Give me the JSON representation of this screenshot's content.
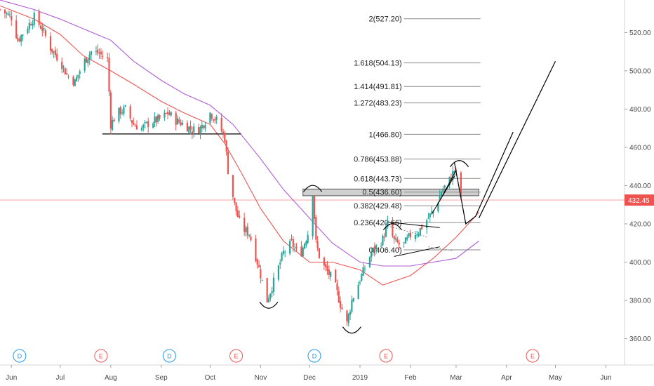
{
  "chart_data": {
    "type": "candlestick",
    "y_axis": {
      "position": "right",
      "range": [
        347,
        537
      ],
      "ticks": [
        "360.00",
        "380.00",
        "400.00",
        "420.00",
        "440.00",
        "460.00",
        "480.00",
        "500.00",
        "520.00"
      ]
    },
    "x_axis": {
      "range": [
        "2018-05-25",
        "2019-06-12"
      ],
      "ticks": [
        {
          "label": "Jun",
          "date": "2018-06-01"
        },
        {
          "label": "Jul",
          "date": "2018-07-01"
        },
        {
          "label": "Aug",
          "date": "2018-08-01"
        },
        {
          "label": "Sep",
          "date": "2018-09-01"
        },
        {
          "label": "Oct",
          "date": "2018-10-01"
        },
        {
          "label": "Nov",
          "date": "2018-11-01"
        },
        {
          "label": "Dec",
          "date": "2018-12-01"
        },
        {
          "label": "2019",
          "date": "2019-01-01"
        },
        {
          "label": "Feb",
          "date": "2019-02-01"
        },
        {
          "label": "Mar",
          "date": "2019-03-01"
        },
        {
          "label": "Apr",
          "date": "2019-04-01"
        },
        {
          "label": "May",
          "date": "2019-05-01"
        },
        {
          "label": "Jun",
          "date": "2019-06-01"
        }
      ]
    },
    "current_price": {
      "value": 432.45,
      "label": "432.45",
      "color": "#ef5350"
    },
    "price_path": [
      [
        "2018-05-25",
        532
      ],
      [
        "2018-06-01",
        528
      ],
      [
        "2018-06-05",
        516
      ],
      [
        "2018-06-10",
        522
      ],
      [
        "2018-06-15",
        528
      ],
      [
        "2018-06-20",
        522
      ],
      [
        "2018-06-25",
        512
      ],
      [
        "2018-07-01",
        505
      ],
      [
        "2018-07-05",
        498
      ],
      [
        "2018-07-10",
        494
      ],
      [
        "2018-07-15",
        504
      ],
      [
        "2018-07-20",
        510
      ],
      [
        "2018-07-25",
        509
      ],
      [
        "2018-07-30",
        506
      ],
      [
        "2018-08-01",
        472
      ],
      [
        "2018-08-05",
        478
      ],
      [
        "2018-08-10",
        480
      ],
      [
        "2018-08-15",
        472
      ],
      [
        "2018-08-20",
        470
      ],
      [
        "2018-08-25",
        473
      ],
      [
        "2018-09-01",
        475
      ],
      [
        "2018-09-05",
        478
      ],
      [
        "2018-09-10",
        474
      ],
      [
        "2018-09-15",
        472
      ],
      [
        "2018-09-20",
        469
      ],
      [
        "2018-09-25",
        470
      ],
      [
        "2018-10-01",
        478
      ],
      [
        "2018-10-05",
        474
      ],
      [
        "2018-10-10",
        465
      ],
      [
        "2018-10-12",
        448
      ],
      [
        "2018-10-16",
        430
      ],
      [
        "2018-10-20",
        418
      ],
      [
        "2018-10-25",
        415
      ],
      [
        "2018-10-30",
        400
      ],
      [
        "2018-11-05",
        380
      ],
      [
        "2018-11-10",
        392
      ],
      [
        "2018-11-15",
        405
      ],
      [
        "2018-11-20",
        410
      ],
      [
        "2018-11-25",
        403
      ],
      [
        "2018-11-30",
        415
      ],
      [
        "2018-12-03",
        437
      ],
      [
        "2018-12-05",
        410
      ],
      [
        "2018-12-08",
        400
      ],
      [
        "2018-12-12",
        395
      ],
      [
        "2018-12-16",
        390
      ],
      [
        "2018-12-20",
        378
      ],
      [
        "2018-12-24",
        368
      ],
      [
        "2018-12-27",
        380
      ],
      [
        "2019-01-02",
        393
      ],
      [
        "2019-01-08",
        405
      ],
      [
        "2019-01-15",
        412
      ],
      [
        "2019-01-18",
        420
      ],
      [
        "2019-01-22",
        411
      ],
      [
        "2019-01-27",
        408
      ],
      [
        "2019-02-01",
        414
      ],
      [
        "2019-02-06",
        416
      ],
      [
        "2019-02-11",
        422
      ],
      [
        "2019-02-16",
        428
      ],
      [
        "2019-02-20",
        437
      ],
      [
        "2019-02-25",
        443
      ],
      [
        "2019-02-28",
        448
      ],
      [
        "2019-03-02",
        443
      ],
      [
        "2019-03-04",
        434
      ]
    ],
    "moving_averages": [
      {
        "color": "#ef5350",
        "points": [
          [
            "2018-05-25",
            534
          ],
          [
            "2018-06-15",
            527
          ],
          [
            "2018-07-01",
            519
          ],
          [
            "2018-07-15",
            508
          ],
          [
            "2018-08-01",
            500
          ],
          [
            "2018-08-15",
            493
          ],
          [
            "2018-09-01",
            484
          ],
          [
            "2018-09-15",
            478
          ],
          [
            "2018-10-01",
            472
          ],
          [
            "2018-10-10",
            462
          ],
          [
            "2018-10-20",
            447
          ],
          [
            "2018-11-01",
            428
          ],
          [
            "2018-11-15",
            411
          ],
          [
            "2018-12-01",
            400
          ],
          [
            "2018-12-15",
            400
          ],
          [
            "2019-01-01",
            396
          ],
          [
            "2019-01-15",
            388
          ],
          [
            "2019-02-01",
            393
          ],
          [
            "2019-02-15",
            402
          ],
          [
            "2019-03-01",
            413
          ],
          [
            "2019-03-15",
            426
          ]
        ]
      },
      {
        "color": "#b05cd6",
        "points": [
          [
            "2018-05-25",
            537
          ],
          [
            "2018-06-15",
            532
          ],
          [
            "2018-07-01",
            527
          ],
          [
            "2018-07-15",
            522
          ],
          [
            "2018-08-01",
            516
          ],
          [
            "2018-08-15",
            505
          ],
          [
            "2018-09-01",
            495
          ],
          [
            "2018-09-15",
            488
          ],
          [
            "2018-10-01",
            482
          ],
          [
            "2018-10-15",
            472
          ],
          [
            "2018-11-01",
            454
          ],
          [
            "2018-11-15",
            438
          ],
          [
            "2018-12-01",
            423
          ],
          [
            "2018-12-15",
            410
          ],
          [
            "2019-01-01",
            400
          ],
          [
            "2019-01-15",
            398
          ],
          [
            "2019-02-01",
            398
          ],
          [
            "2019-02-15",
            400
          ],
          [
            "2019-03-01",
            402
          ],
          [
            "2019-03-15",
            411
          ]
        ]
      }
    ],
    "fib_levels": [
      {
        "label": "2(527.20)",
        "value": 527.2
      },
      {
        "label": "1.618(504.13)",
        "value": 504.13
      },
      {
        "label": "1.414(491.81)",
        "value": 491.81
      },
      {
        "label": "1.272(483.23)",
        "value": 483.23
      },
      {
        "label": "1(466.80)",
        "value": 466.8
      },
      {
        "label": "0.786(453.88)",
        "value": 453.88
      },
      {
        "label": "0.618(443.73)",
        "value": 443.73
      },
      {
        "label": "0.5(436.60)",
        "value": 436.6
      },
      {
        "label": "0.382(429.48)",
        "value": 429.48
      },
      {
        "label": "0.236(420.66)",
        "value": 420.66
      },
      {
        "label": "0(406.40)",
        "value": 406.4
      }
    ],
    "fib_range": [
      "2019-01-28",
      "2019-03-16"
    ],
    "support_line": {
      "from": [
        "2018-08-01",
        467
      ],
      "to": [
        "2018-10-20",
        467
      ]
    },
    "resistance_box": {
      "from": "2018-11-27",
      "to": "2019-03-15",
      "low": 434.7,
      "high": 438.2
    },
    "triangle": {
      "upper": [
        [
          "2019-01-18",
          421
        ],
        [
          "2019-02-19",
          418
        ]
      ],
      "lower": [
        [
          "2019-01-22",
          403
        ],
        [
          "2019-02-19",
          408
        ]
      ],
      "dotted_upper": [
        [
          "2019-01-18",
          419
        ],
        [
          "2019-02-12",
          413
        ]
      ],
      "dotted_lower": [
        [
          "2019-02-12",
          408
        ],
        [
          "2019-02-27",
          406
        ]
      ]
    },
    "channel": {
      "lower": [
        [
          "2019-02-14",
          425
        ],
        [
          "2019-02-28",
          445
        ]
      ],
      "upper": [
        [
          "2019-02-17",
          429
        ],
        [
          "2019-03-01",
          448
        ]
      ]
    },
    "arcs": [
      {
        "date": "2018-11-06",
        "value": 377,
        "dir": "bottom"
      },
      {
        "date": "2018-12-27",
        "value": 364,
        "dir": "bottom"
      },
      {
        "date": "2018-12-03",
        "value": 439,
        "dir": "top"
      },
      {
        "date": "2019-01-21",
        "value": 419,
        "dir": "top"
      },
      {
        "date": "2019-03-03",
        "value": 452,
        "dir": "top"
      }
    ],
    "projection": [
      [
        "2019-02-28",
        452
      ],
      [
        "2019-03-07",
        420
      ],
      [
        "2019-03-13",
        424
      ],
      [
        "2019-04-05",
        468
      ]
    ],
    "projection_second": [
      [
        "2019-03-15",
        423
      ],
      [
        "2019-05-01",
        505
      ]
    ],
    "events": [
      {
        "letter": "D",
        "date": "2018-06-06",
        "color": "#2196f3"
      },
      {
        "letter": "E",
        "date": "2018-07-26",
        "color": "#ef5350"
      },
      {
        "letter": "D",
        "date": "2018-09-06",
        "color": "#2196f3"
      },
      {
        "letter": "E",
        "date": "2018-10-17",
        "color": "#ef5350"
      },
      {
        "letter": "D",
        "date": "2018-12-04",
        "color": "#2196f3"
      },
      {
        "letter": "E",
        "date": "2019-01-17",
        "color": "#ef5350"
      },
      {
        "letter": "E",
        "date": "2019-04-17",
        "color": "#ef5350"
      }
    ],
    "colors": {
      "up": "#26a69a",
      "down": "#ef5350",
      "text": "#4a4a4a",
      "drawing": "#000000"
    }
  }
}
